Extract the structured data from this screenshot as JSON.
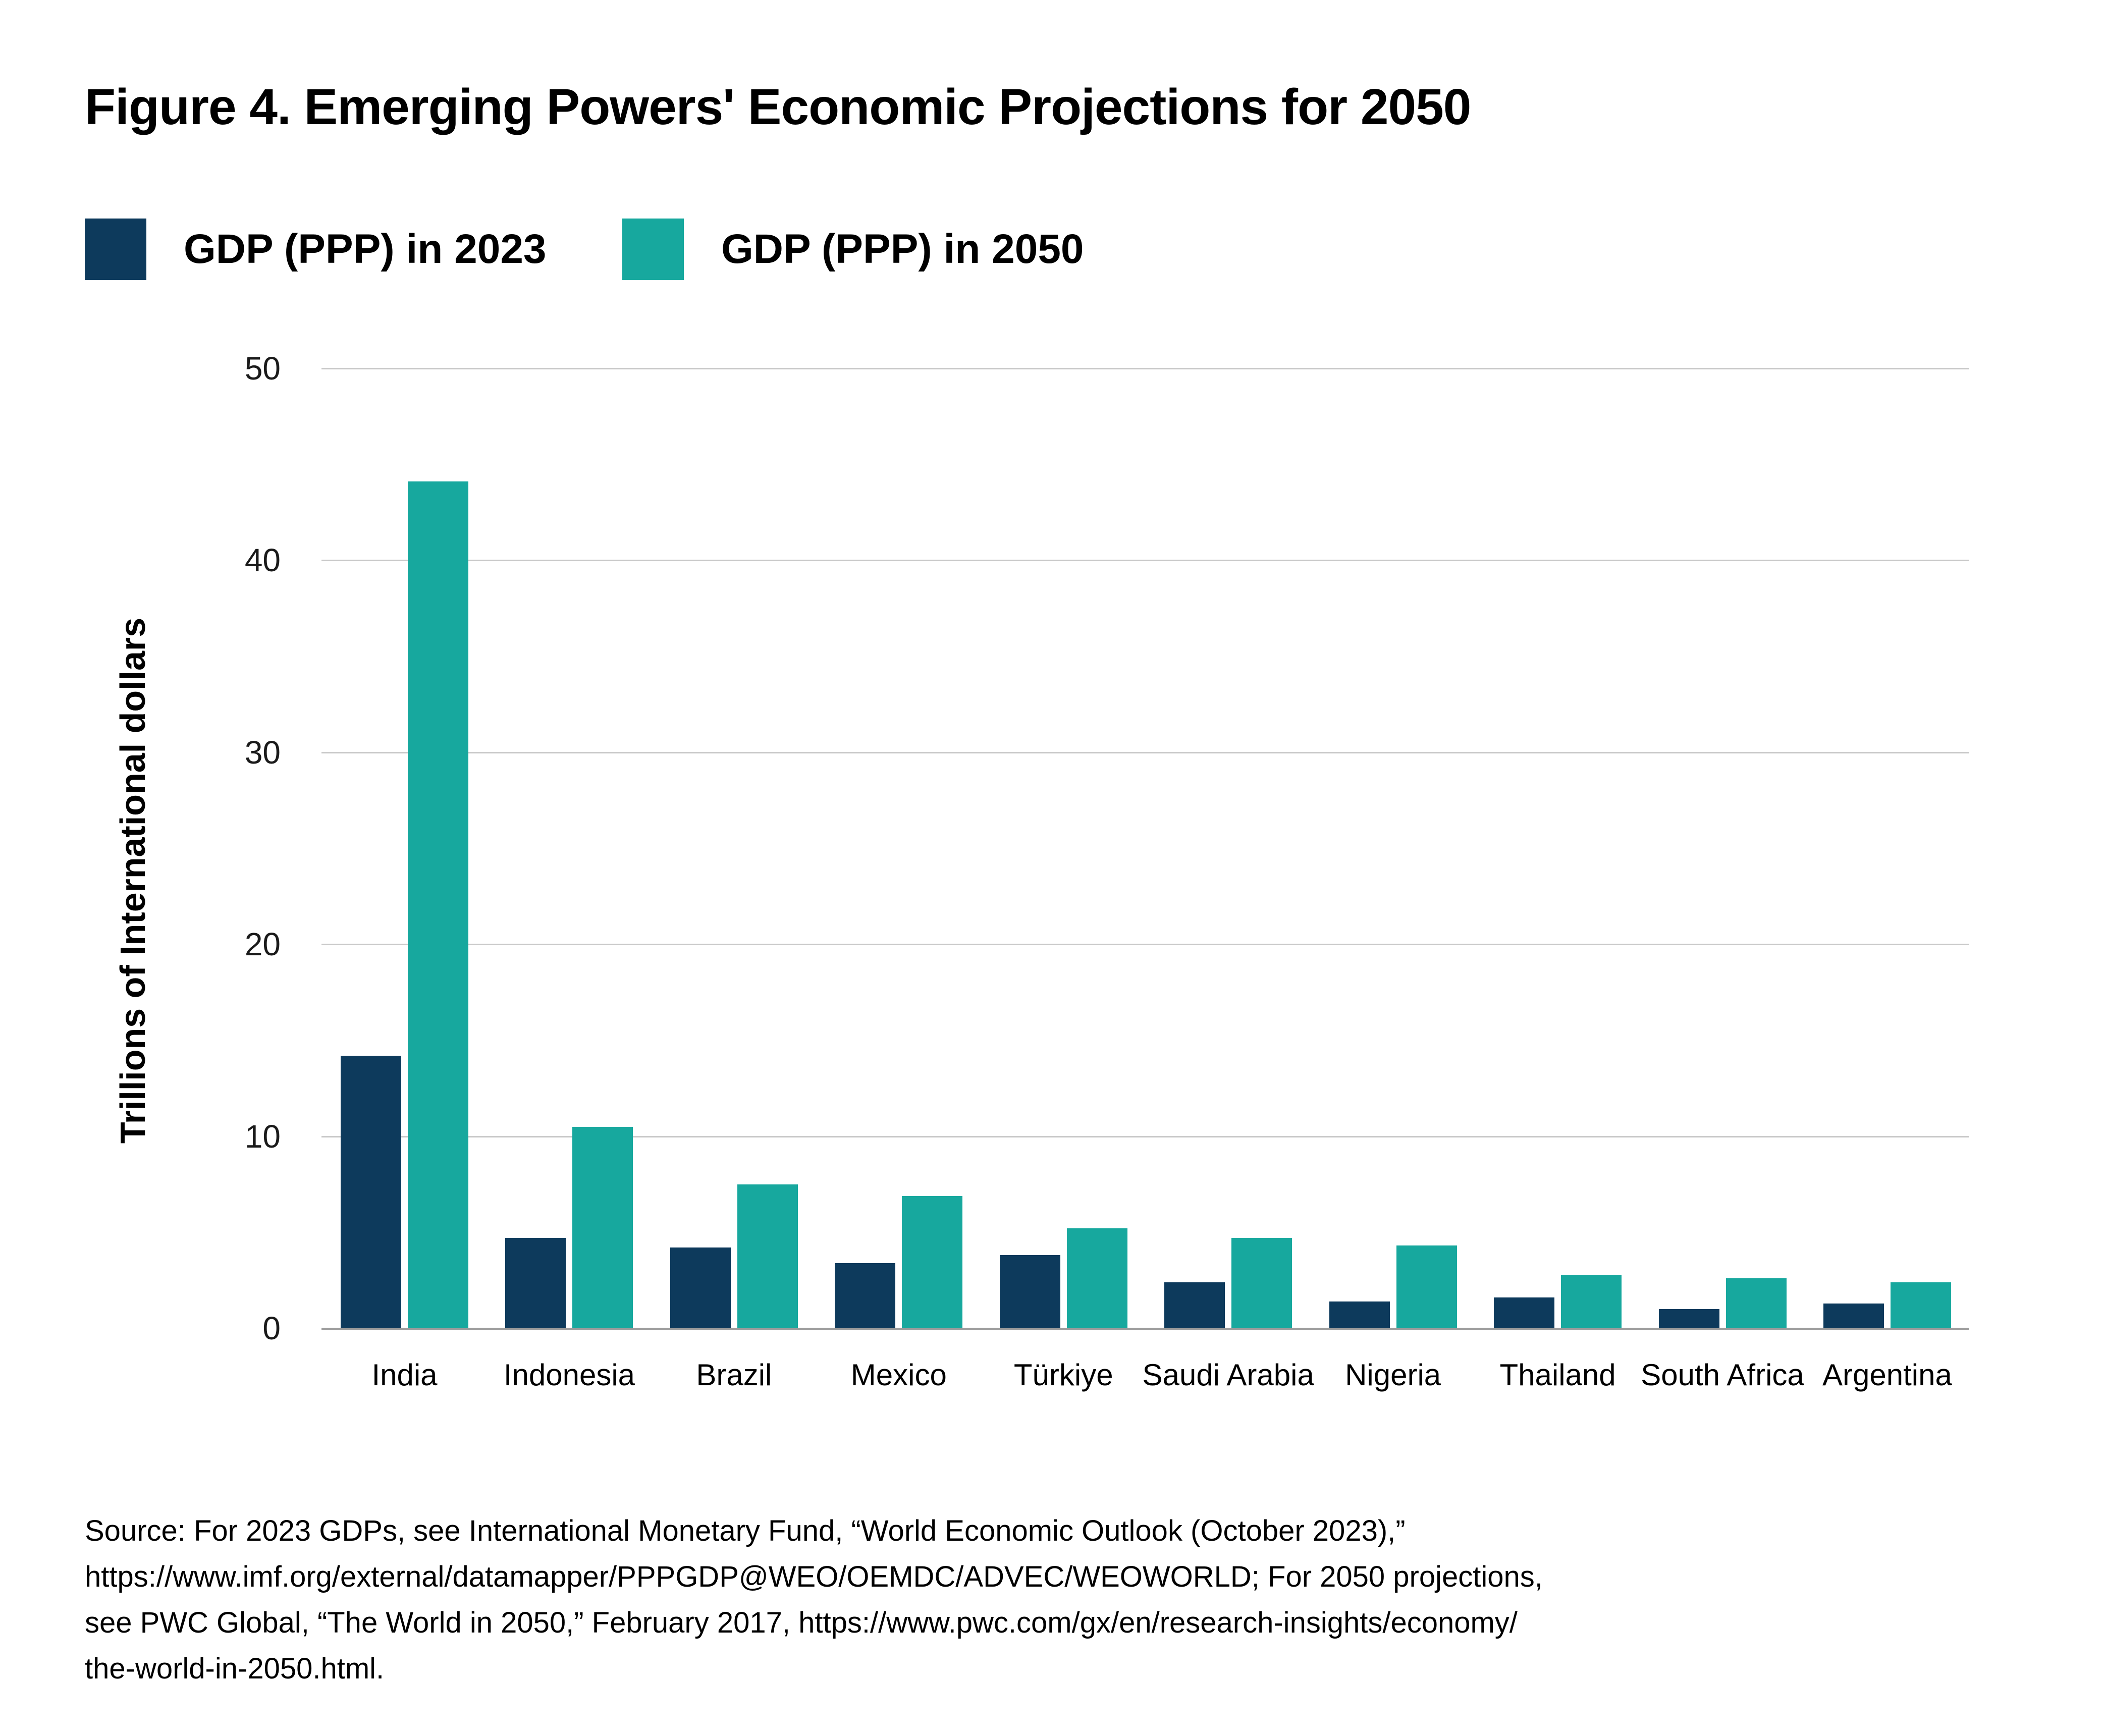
{
  "figure": {
    "title": "Figure 4. Emerging Powers' Economic Projections for 2050",
    "source_lines": [
      "Source: For 2023 GDPs, see International Monetary Fund, “World Economic Outlook (October 2023),”",
      "https://www.imf.org/external/datamapper/PPPGDP@WEO/OEMDC/ADVEC/WEOWORLD; For 2050 projections,",
      "see PWC Global, “The World in 2050,” February 2017, https://www.pwc.com/gx/en/research-insights/economy/",
      "the-world-in-2050.html."
    ]
  },
  "legend": [
    {
      "label": "GDP (PPP) in 2023",
      "color": "#0d3a5c"
    },
    {
      "label": "GDP (PPP) in 2050",
      "color": "#17a89e"
    }
  ],
  "chart_data": {
    "type": "bar",
    "title": "Figure 4. Emerging Powers' Economic Projections for 2050",
    "categories": [
      "India",
      "Indonesia",
      "Brazil",
      "Mexico",
      "Türkiye",
      "Saudi Arabia",
      "Nigeria",
      "Thailand",
      "South Africa",
      "Argentina"
    ],
    "series": [
      {
        "name": "GDP (PPP) in 2023",
        "color": "#0d3a5c",
        "values": [
          14.2,
          4.7,
          4.2,
          3.4,
          3.8,
          2.4,
          1.4,
          1.6,
          1.0,
          1.3
        ]
      },
      {
        "name": "GDP (PPP) in 2050",
        "color": "#17a89e",
        "values": [
          44.1,
          10.5,
          7.5,
          6.9,
          5.2,
          4.7,
          4.3,
          2.8,
          2.6,
          2.4
        ]
      }
    ],
    "xlabel": "",
    "ylabel": "Trillions of International dollars",
    "ylim": [
      0,
      50
    ],
    "y_ticks": [
      0,
      10,
      20,
      30,
      40,
      50
    ],
    "grid": "horizontal-only",
    "gridline_color": "#c9c9c9",
    "axis_line_color": "#9c9c9c",
    "legend_position": "top-left"
  }
}
